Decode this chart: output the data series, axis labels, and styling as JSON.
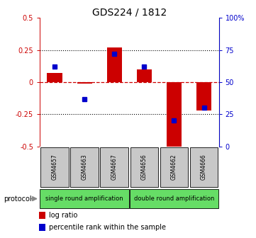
{
  "title": "GDS224 / 1812",
  "samples": [
    "GSM4657",
    "GSM4663",
    "GSM4667",
    "GSM4656",
    "GSM4662",
    "GSM4666"
  ],
  "log_ratio": [
    0.07,
    -0.01,
    0.27,
    0.1,
    -0.53,
    -0.22
  ],
  "percentile_rank": [
    62,
    37,
    72,
    62,
    20,
    30
  ],
  "ylim_left": [
    -0.5,
    0.5
  ],
  "ylim_right": [
    0,
    100
  ],
  "protocol_groups": [
    {
      "label": "single round amplification",
      "color": "#66DD66",
      "start": 0,
      "end": 3
    },
    {
      "label": "double round amplification",
      "color": "#66DD66",
      "start": 3,
      "end": 6
    }
  ],
  "protocol_label": "protocol",
  "legend_items": [
    {
      "label": "log ratio",
      "color": "#CC0000"
    },
    {
      "label": "percentile rank within the sample",
      "color": "#0000CC"
    }
  ],
  "bar_color_red": "#CC0000",
  "bar_color_blue": "#0000CC",
  "dotted_line_color": "black",
  "zero_line_color": "#CC0000",
  "background_color": "#ffffff",
  "bar_width": 0.5,
  "sample_box_color": "#C8C8C8",
  "left_yticks": [
    -0.5,
    -0.25,
    0,
    0.25,
    0.5
  ],
  "left_yticklabels": [
    "-0.5",
    "-0.25",
    "0",
    "0.25",
    "0.5"
  ],
  "right_yticks": [
    0,
    25,
    50,
    75,
    100
  ],
  "right_yticklabels": [
    "0",
    "25",
    "50",
    "75",
    "100%"
  ]
}
